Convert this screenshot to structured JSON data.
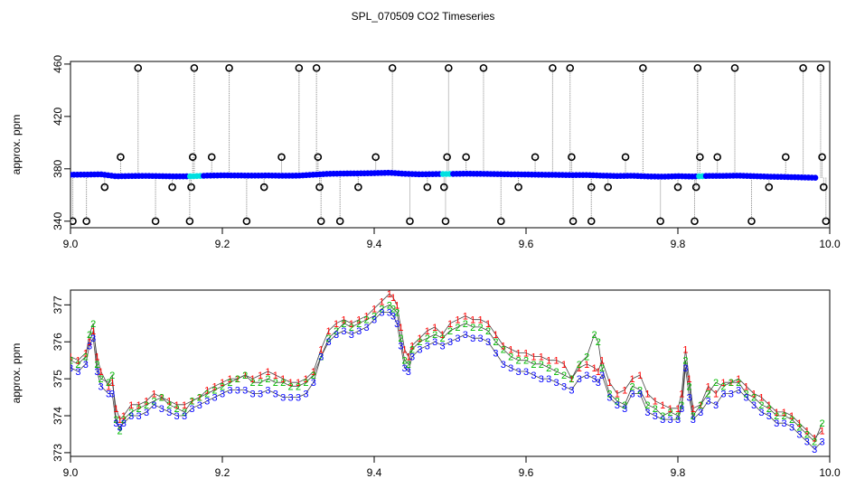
{
  "title": "SPL_070509  CO2 Timeseries",
  "chart_data": [
    {
      "type": "scatter",
      "title": "",
      "xlabel": "",
      "ylabel": "approx. ppm",
      "xlim": [
        9.0,
        10.0
      ],
      "ylim": [
        335,
        462
      ],
      "xticks": [
        "9.0",
        "9.2",
        "9.4",
        "9.6",
        "9.8",
        "10.0"
      ],
      "yticks": [
        "340",
        "380",
        "420",
        "460"
      ],
      "colors": {
        "main": "#0000ff",
        "alt": "#00e0e0",
        "flag": "#000000",
        "lines": "#888888"
      },
      "series": [
        {
          "values": [
            [
              9.0,
              375.5
            ],
            [
              9.02,
              375.6
            ],
            [
              9.04,
              375.8
            ],
            [
              9.06,
              374.3
            ],
            [
              9.08,
              374.5
            ],
            [
              9.1,
              374.6
            ],
            [
              9.12,
              374.4
            ],
            [
              9.14,
              374.2
            ],
            [
              9.16,
              374.3
            ],
            [
              9.18,
              374.8
            ],
            [
              9.2,
              375.0
            ],
            [
              9.22,
              374.9
            ],
            [
              9.24,
              374.8
            ],
            [
              9.26,
              374.9
            ],
            [
              9.28,
              374.7
            ],
            [
              9.3,
              374.8
            ],
            [
              9.32,
              375.5
            ],
            [
              9.34,
              376.2
            ],
            [
              9.36,
              376.4
            ],
            [
              9.38,
              376.5
            ],
            [
              9.4,
              376.7
            ],
            [
              9.42,
              377.0
            ],
            [
              9.44,
              376.2
            ],
            [
              9.46,
              375.8
            ],
            [
              9.48,
              376.0
            ],
            [
              9.5,
              376.1
            ],
            [
              9.52,
              376.3
            ],
            [
              9.54,
              376.2
            ],
            [
              9.56,
              376.0
            ],
            [
              9.58,
              375.8
            ],
            [
              9.6,
              375.7
            ],
            [
              9.62,
              375.5
            ],
            [
              9.64,
              375.4
            ],
            [
              9.66,
              375.2
            ],
            [
              9.68,
              375.3
            ],
            [
              9.7,
              374.8
            ],
            [
              9.72,
              374.5
            ],
            [
              9.74,
              374.7
            ],
            [
              9.76,
              374.2
            ],
            [
              9.78,
              374.0
            ],
            [
              9.8,
              374.4
            ],
            [
              9.82,
              374.1
            ],
            [
              9.84,
              374.6
            ],
            [
              9.86,
              374.6
            ],
            [
              9.88,
              374.8
            ],
            [
              9.9,
              374.4
            ],
            [
              9.92,
              374.0
            ],
            [
              9.94,
              373.8
            ],
            [
              9.96,
              373.5
            ],
            [
              9.98,
              373.2
            ]
          ]
        },
        {
          "values": [
            [
              9.003,
              340
            ],
            [
              9.021,
              340
            ],
            [
              9.045,
              366
            ],
            [
              9.066,
              389
            ],
            [
              9.089,
              457
            ],
            [
              9.112,
              340
            ],
            [
              9.134,
              366
            ],
            [
              9.157,
              340
            ],
            [
              9.159,
              366
            ],
            [
              9.161,
              389
            ],
            [
              9.163,
              457
            ],
            [
              9.186,
              389
            ],
            [
              9.209,
              457
            ],
            [
              9.232,
              340
            ],
            [
              9.255,
              366
            ],
            [
              9.278,
              389
            ],
            [
              9.301,
              457
            ],
            [
              9.324,
              457
            ],
            [
              9.326,
              389
            ],
            [
              9.328,
              366
            ],
            [
              9.33,
              340
            ],
            [
              9.355,
              340
            ],
            [
              9.379,
              366
            ],
            [
              9.402,
              389
            ],
            [
              9.424,
              457
            ],
            [
              9.447,
              340
            ],
            [
              9.47,
              366
            ],
            [
              9.492,
              366
            ],
            [
              9.494,
              340
            ],
            [
              9.496,
              389
            ],
            [
              9.498,
              457
            ],
            [
              9.521,
              389
            ],
            [
              9.544,
              457
            ],
            [
              9.567,
              340
            ],
            [
              9.59,
              366
            ],
            [
              9.612,
              389
            ],
            [
              9.635,
              457
            ],
            [
              9.658,
              457
            ],
            [
              9.66,
              389
            ],
            [
              9.662,
              340
            ],
            [
              9.686,
              366
            ],
            [
              9.686,
              340
            ],
            [
              9.708,
              366
            ],
            [
              9.731,
              389
            ],
            [
              9.754,
              457
            ],
            [
              9.777,
              340
            ],
            [
              9.8,
              366
            ],
            [
              9.822,
              340
            ],
            [
              9.824,
              366
            ],
            [
              9.826,
              457
            ],
            [
              9.829,
              389
            ],
            [
              9.852,
              389
            ],
            [
              9.875,
              457
            ],
            [
              9.897,
              340
            ],
            [
              9.92,
              366
            ],
            [
              9.942,
              389
            ],
            [
              9.965,
              457
            ],
            [
              9.988,
              457
            ],
            [
              9.99,
              389
            ],
            [
              9.992,
              366
            ],
            [
              9.995,
              340
            ]
          ]
        }
      ]
    },
    {
      "type": "line",
      "title": "",
      "xlabel": "",
      "ylabel": "approx. ppm",
      "xlim": [
        9.0,
        10.0
      ],
      "ylim": [
        372.9,
        377.4
      ],
      "xticks": [
        "9.0",
        "9.2",
        "9.4",
        "9.6",
        "9.8",
        "10.0"
      ],
      "yticks": [
        "373",
        "374",
        "375",
        "376",
        "377"
      ],
      "marker_labels": [
        "1",
        "2",
        "3"
      ],
      "colors": {
        "s1": "#ff0000",
        "s2": "#00bb00",
        "s3": "#0000ff",
        "line": "#444444"
      },
      "x": [
        9.0,
        9.01,
        9.02,
        9.025,
        9.03,
        9.035,
        9.04,
        9.05,
        9.055,
        9.06,
        9.065,
        9.07,
        9.08,
        9.09,
        9.1,
        9.11,
        9.12,
        9.13,
        9.14,
        9.15,
        9.16,
        9.17,
        9.18,
        9.19,
        9.2,
        9.21,
        9.22,
        9.23,
        9.24,
        9.25,
        9.26,
        9.27,
        9.28,
        9.29,
        9.3,
        9.31,
        9.32,
        9.33,
        9.34,
        9.35,
        9.36,
        9.37,
        9.38,
        9.39,
        9.4,
        9.41,
        9.42,
        9.425,
        9.43,
        9.435,
        9.44,
        9.445,
        9.45,
        9.46,
        9.47,
        9.48,
        9.49,
        9.5,
        9.51,
        9.52,
        9.53,
        9.54,
        9.55,
        9.56,
        9.57,
        9.58,
        9.59,
        9.6,
        9.61,
        9.62,
        9.63,
        9.64,
        9.65,
        9.66,
        9.67,
        9.68,
        9.69,
        9.695,
        9.7,
        9.71,
        9.72,
        9.73,
        9.74,
        9.75,
        9.76,
        9.77,
        9.78,
        9.79,
        9.8,
        9.805,
        9.81,
        9.815,
        9.82,
        9.83,
        9.84,
        9.85,
        9.86,
        9.87,
        9.88,
        9.89,
        9.9,
        9.91,
        9.92,
        9.93,
        9.94,
        9.95,
        9.96,
        9.97,
        9.98,
        9.99
      ],
      "series": [
        {
          "values": [
            375.6,
            375.5,
            375.7,
            376.0,
            376.3,
            375.6,
            375.2,
            374.8,
            374.9,
            374.2,
            373.9,
            374.0,
            374.3,
            374.3,
            374.4,
            374.6,
            374.5,
            374.4,
            374.3,
            374.3,
            374.4,
            374.5,
            374.7,
            374.8,
            374.9,
            375.0,
            375.0,
            375.1,
            375.0,
            375.1,
            375.2,
            375.1,
            375.0,
            374.9,
            374.9,
            375.0,
            375.2,
            375.8,
            376.3,
            376.5,
            376.6,
            376.5,
            376.6,
            376.7,
            376.9,
            377.1,
            377.3,
            377.2,
            377.0,
            376.4,
            375.8,
            375.6,
            375.9,
            376.1,
            376.3,
            376.4,
            376.2,
            376.5,
            376.6,
            376.7,
            376.6,
            376.6,
            376.5,
            376.2,
            375.9,
            375.8,
            375.7,
            375.7,
            375.6,
            375.6,
            375.5,
            375.5,
            375.4,
            375.0,
            375.3,
            375.4,
            375.3,
            375.2,
            375.5,
            374.9,
            374.6,
            374.7,
            375.0,
            375.1,
            374.6,
            374.4,
            374.3,
            374.2,
            374.2,
            374.6,
            375.8,
            375.0,
            374.2,
            374.3,
            374.8,
            374.6,
            374.9,
            374.9,
            375.0,
            374.8,
            374.6,
            374.5,
            374.3,
            374.1,
            374.1,
            374.0,
            373.8,
            373.6,
            373.4,
            373.6
          ]
        },
        {
          "values": [
            375.5,
            375.4,
            375.6,
            376.2,
            376.5,
            375.4,
            375.0,
            374.9,
            375.1,
            373.9,
            373.6,
            373.9,
            374.1,
            374.2,
            374.3,
            374.4,
            374.5,
            374.3,
            374.2,
            374.1,
            374.4,
            374.5,
            374.6,
            374.7,
            374.8,
            374.9,
            375.0,
            375.1,
            374.9,
            374.9,
            375.0,
            374.9,
            374.9,
            374.8,
            374.8,
            374.9,
            375.1,
            375.6,
            376.1,
            376.3,
            376.5,
            376.4,
            376.5,
            376.6,
            376.7,
            376.9,
            377.0,
            376.9,
            376.8,
            376.1,
            375.5,
            375.4,
            375.8,
            376.0,
            376.1,
            376.2,
            376.1,
            376.3,
            376.4,
            376.5,
            376.4,
            376.4,
            376.3,
            376.0,
            375.8,
            375.6,
            375.5,
            375.5,
            375.4,
            375.4,
            375.3,
            375.2,
            375.1,
            375.0,
            375.4,
            375.6,
            376.2,
            376.0,
            375.3,
            374.6,
            374.4,
            374.3,
            374.8,
            374.7,
            374.3,
            374.2,
            374.0,
            374.1,
            374.0,
            374.3,
            375.5,
            374.8,
            374.0,
            374.3,
            374.6,
            374.9,
            374.8,
            374.9,
            374.9,
            374.6,
            374.5,
            374.3,
            374.2,
            374.0,
            374.0,
            373.9,
            373.7,
            373.5,
            373.3,
            373.8
          ]
        },
        {
          "values": [
            375.3,
            375.2,
            375.4,
            375.9,
            376.1,
            375.2,
            374.8,
            374.6,
            374.6,
            373.8,
            373.7,
            373.8,
            374.0,
            374.0,
            374.1,
            374.3,
            374.2,
            374.1,
            374.0,
            374.0,
            374.2,
            374.3,
            374.4,
            374.5,
            374.6,
            374.7,
            374.7,
            374.7,
            374.6,
            374.6,
            374.7,
            374.6,
            374.5,
            374.5,
            374.5,
            374.6,
            374.9,
            375.6,
            376.0,
            376.2,
            376.3,
            376.2,
            376.3,
            376.4,
            376.6,
            376.8,
            376.8,
            376.7,
            376.5,
            375.9,
            375.3,
            375.2,
            375.6,
            375.8,
            375.9,
            376.0,
            375.9,
            376.0,
            376.1,
            376.2,
            376.1,
            376.1,
            376.0,
            375.7,
            375.4,
            375.3,
            375.2,
            375.2,
            375.1,
            375.0,
            375.0,
            374.9,
            374.8,
            374.7,
            375.0,
            375.1,
            375.0,
            374.9,
            375.1,
            374.5,
            374.3,
            374.2,
            374.6,
            374.6,
            374.1,
            374.0,
            373.9,
            373.9,
            373.9,
            374.2,
            375.3,
            374.5,
            373.9,
            374.1,
            374.4,
            374.3,
            374.6,
            374.6,
            374.7,
            374.5,
            374.3,
            374.1,
            374.0,
            373.8,
            373.8,
            373.7,
            373.5,
            373.3,
            373.1,
            373.3
          ]
        }
      ]
    }
  ]
}
